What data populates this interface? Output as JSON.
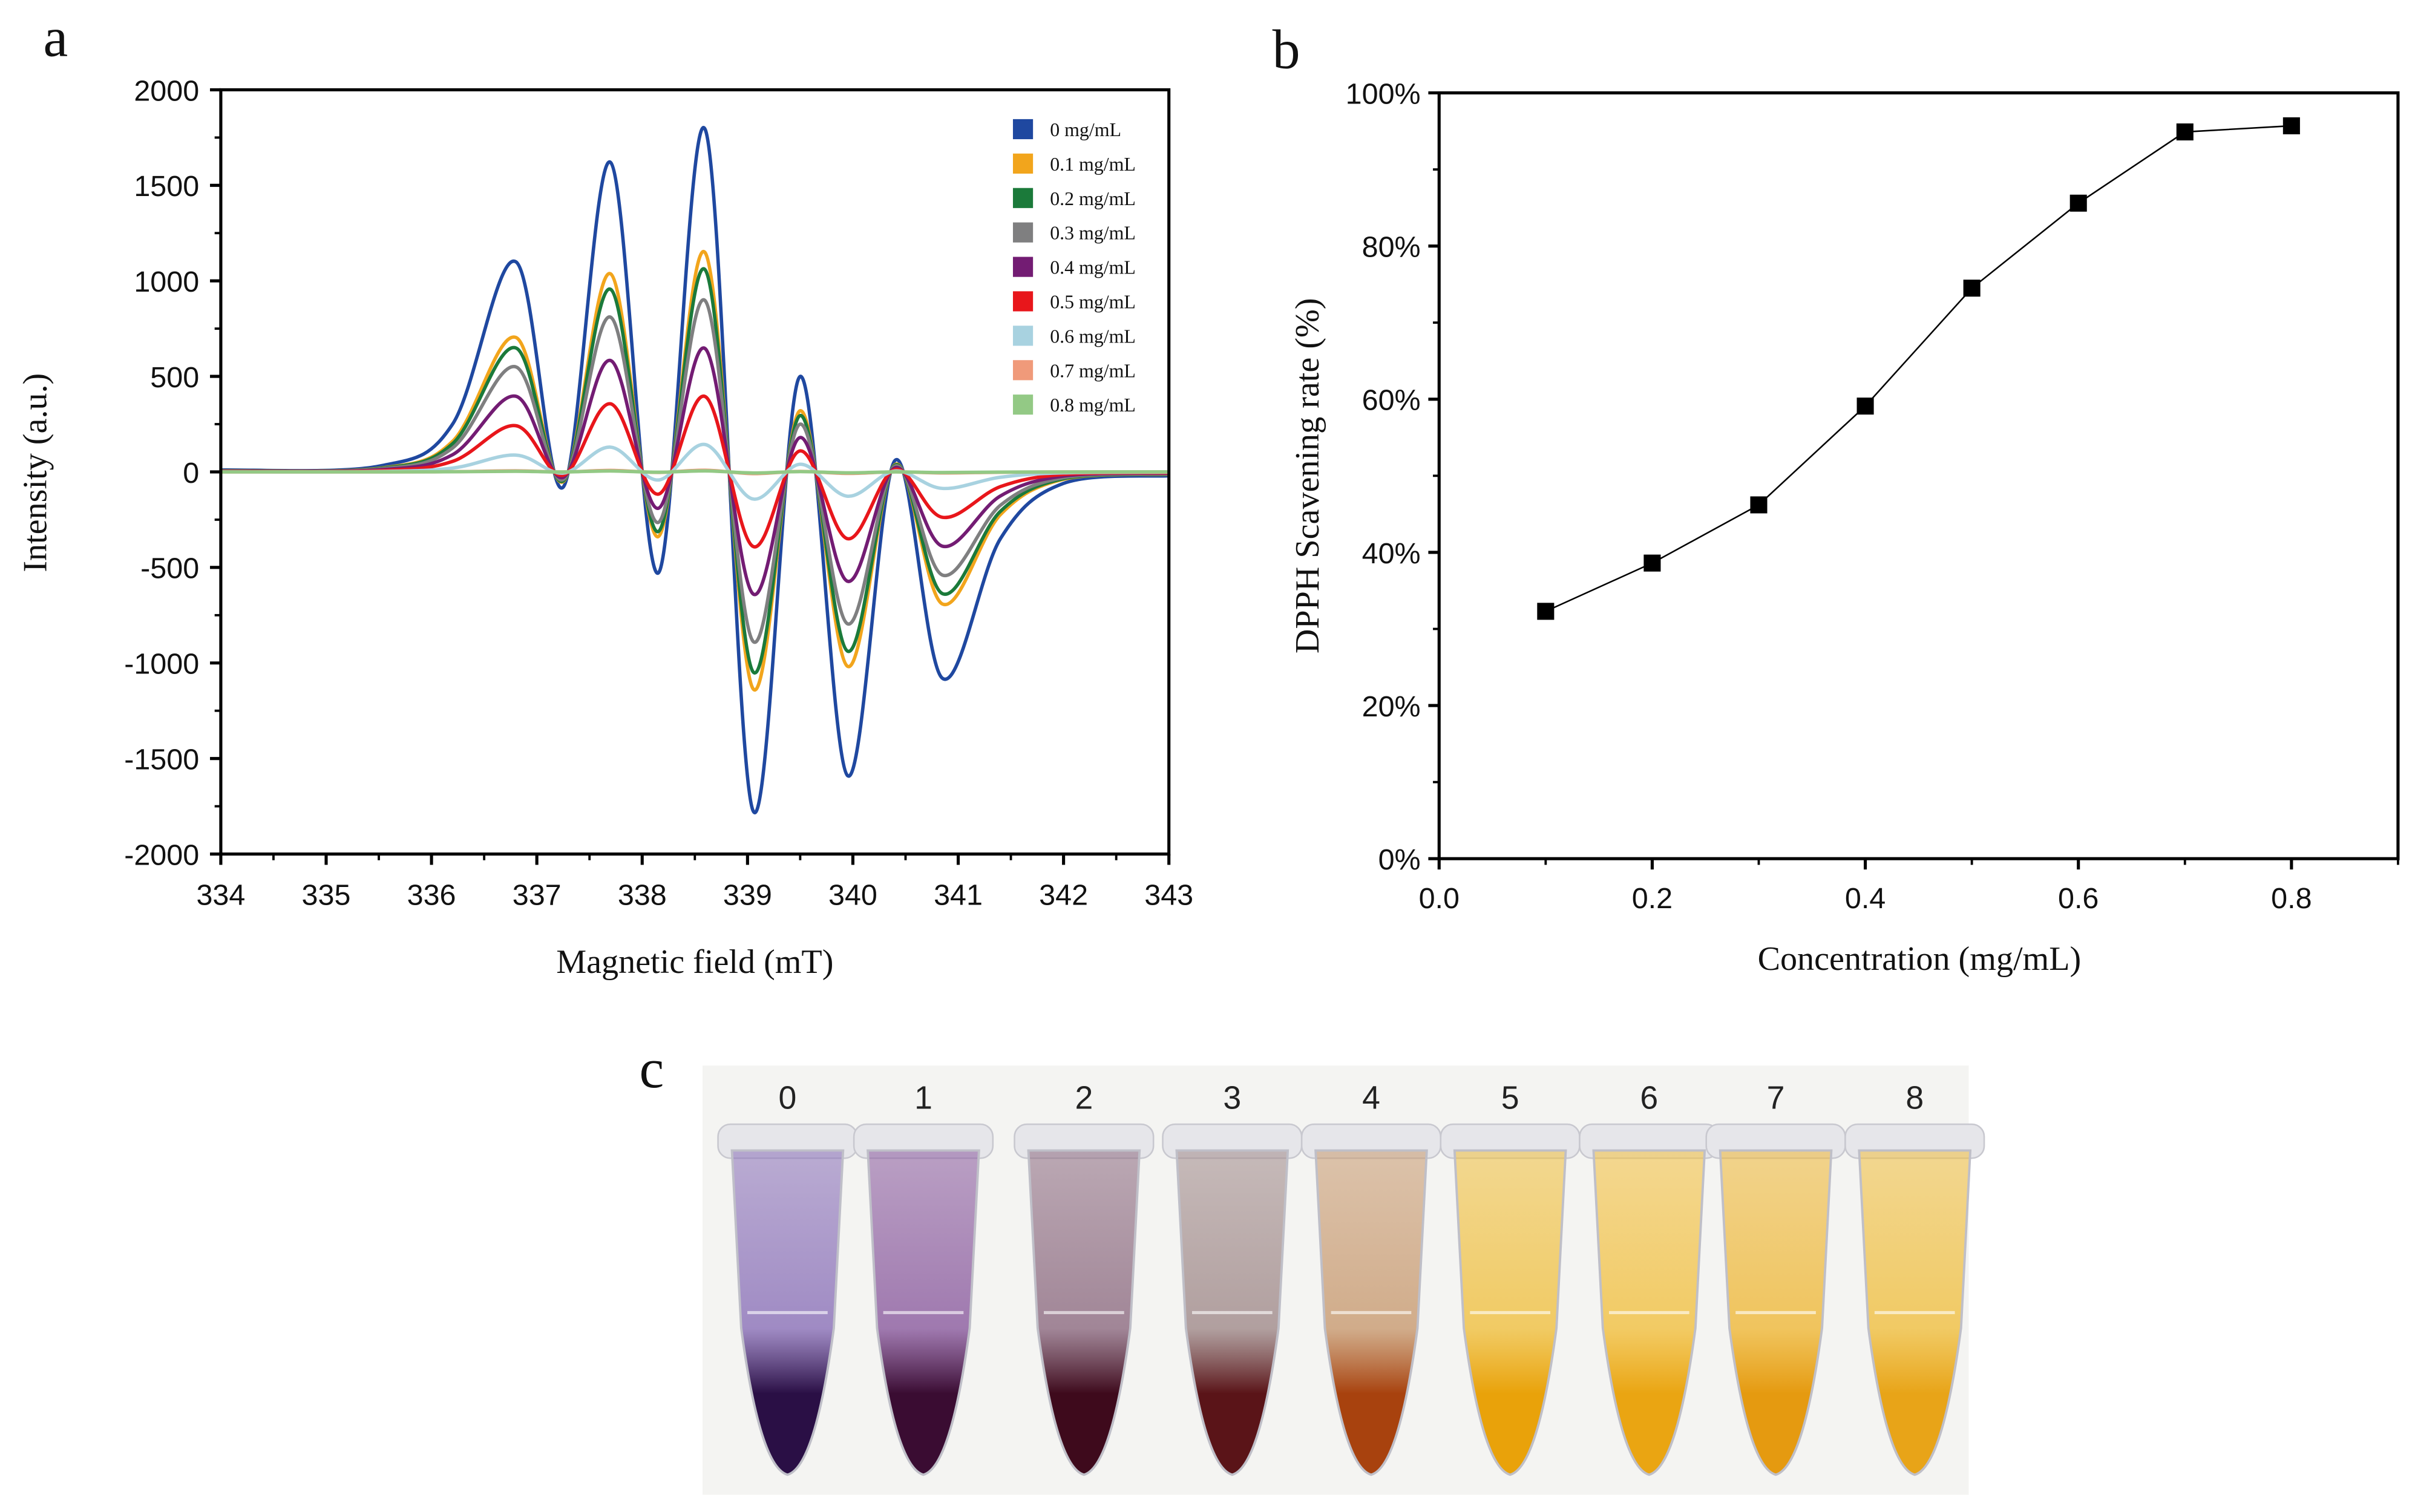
{
  "panels": {
    "a": "a",
    "b": "b",
    "c": "c"
  },
  "chart_data": [
    {
      "type": "line",
      "panel": "a",
      "xlabel": "Magnetic field (mT)",
      "ylabel": "Intensity (a.u.)",
      "xlim": [
        334,
        343
      ],
      "ylim": [
        -2000,
        2000
      ],
      "xticks": [
        334,
        335,
        336,
        337,
        338,
        339,
        340,
        341,
        342,
        343
      ],
      "yticks": [
        2000,
        1500,
        1000,
        500,
        0,
        -500,
        -1000,
        -1500,
        -2000
      ],
      "legend_position": "top-right",
      "x": [
        334,
        335.5,
        336.2,
        336.8,
        337.25,
        337.7,
        338.15,
        338.6,
        339.05,
        339.5,
        339.95,
        340.4,
        340.85,
        341.4,
        342,
        343
      ],
      "base_shape_values": [
        10,
        30,
        250,
        1100,
        -80,
        1620,
        -530,
        1790,
        -1770,
        500,
        -1590,
        60,
        -1080,
        -350,
        -60,
        -20
      ],
      "series": [
        {
          "name": "0 mg/mL",
          "color": "#1f48a0",
          "scale": 1.0
        },
        {
          "name": "0.1 mg/mL",
          "color": "#f2a51c",
          "scale": 0.64
        },
        {
          "name": "0.2 mg/mL",
          "color": "#1b7a3a",
          "scale": 0.59
        },
        {
          "name": "0.3 mg/mL",
          "color": "#7f7f80",
          "scale": 0.5
        },
        {
          "name": "0.4 mg/mL",
          "color": "#731c73",
          "scale": 0.36
        },
        {
          "name": "0.5 mg/mL",
          "color": "#e8161b",
          "scale": 0.22
        },
        {
          "name": "0.6 mg/mL",
          "color": "#a8d2e0",
          "scale": 0.08
        },
        {
          "name": "0.7 mg/mL",
          "color": "#f09a7a",
          "scale": 0.005
        },
        {
          "name": "0.8 mg/mL",
          "color": "#93c985",
          "scale": 0.003
        }
      ]
    },
    {
      "type": "line",
      "panel": "b",
      "xlabel": "Concentration (mg/mL)",
      "ylabel": "DPPH Scavening rate (%)",
      "xlim": [
        0,
        0.9
      ],
      "ylim": [
        0,
        100
      ],
      "xticks": [
        "0.0",
        "0.2",
        "0.4",
        "0.6",
        "0.8"
      ],
      "yticks": [
        "0%",
        "20%",
        "40%",
        "60%",
        "80%",
        "100%"
      ],
      "x": [
        0.1,
        0.2,
        0.3,
        0.4,
        0.5,
        0.6,
        0.7,
        0.8
      ],
      "y": [
        32.3,
        38.6,
        46.2,
        59.1,
        74.5,
        85.6,
        94.9,
        95.7
      ],
      "marker": "square",
      "color": "#000000"
    }
  ],
  "photo": {
    "labels": [
      "0",
      "1",
      "2",
      "3",
      "4",
      "5",
      "6",
      "7",
      "8"
    ],
    "liquid_colors": [
      "#2a0f45",
      "#3a0c32",
      "#3e0a1c",
      "#5a1418",
      "#a8420e",
      "#e9a20a",
      "#eaa512",
      "#e59a10",
      "#e8a418"
    ],
    "upper_colors": [
      "#8a70b8",
      "#8a5a9e",
      "#8c6a80",
      "#a08a8a",
      "#c89a70",
      "#f0c040",
      "#f2c040",
      "#efb838",
      "#f0bf40"
    ]
  }
}
